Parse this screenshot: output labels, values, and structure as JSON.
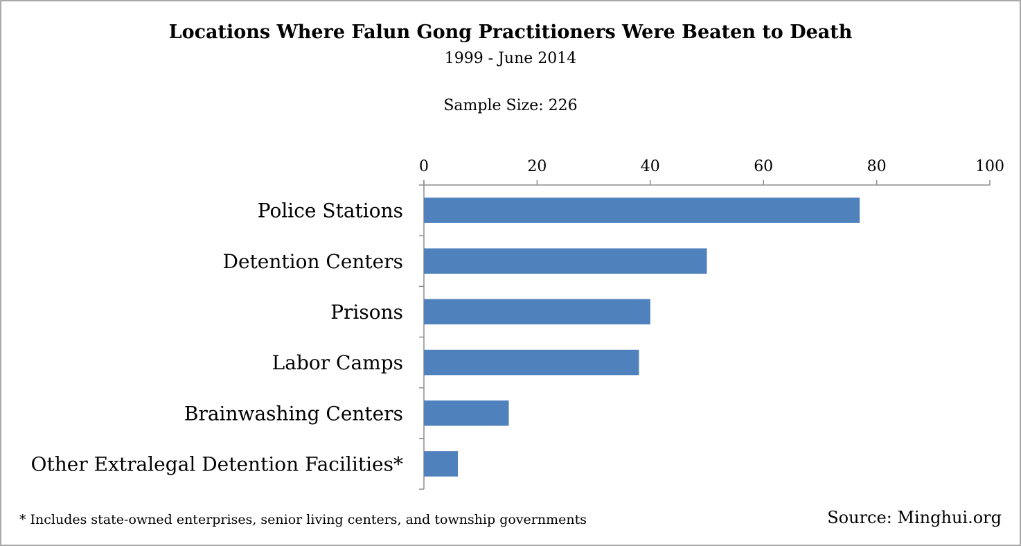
{
  "chart_data": {
    "type": "bar",
    "orientation": "horizontal",
    "title": "Locations Where Falun Gong Practitioners Were Beaten to Death",
    "subtitle": "1999 - June 2014",
    "sample_size_label": "Sample Size: 226",
    "categories": [
      "Police Stations",
      "Detention Centers",
      "Prisons",
      "Labor Camps",
      "Brainwashing Centers",
      "Other Extralegal Detention Facilities*"
    ],
    "values": [
      77,
      50,
      40,
      38,
      15,
      6
    ],
    "xlim": [
      0,
      100
    ],
    "xticks": [
      0,
      20,
      40,
      60,
      80,
      100
    ],
    "xtick_labels": [
      "0",
      "20",
      "40",
      "60",
      "80",
      "100"
    ],
    "axis_position": "top",
    "grid": false,
    "bar_color": "#4F81BD",
    "footnote": "* Includes state-owned enterprises, senior living centers, and township governments",
    "source": "Source: Minghui.org"
  }
}
